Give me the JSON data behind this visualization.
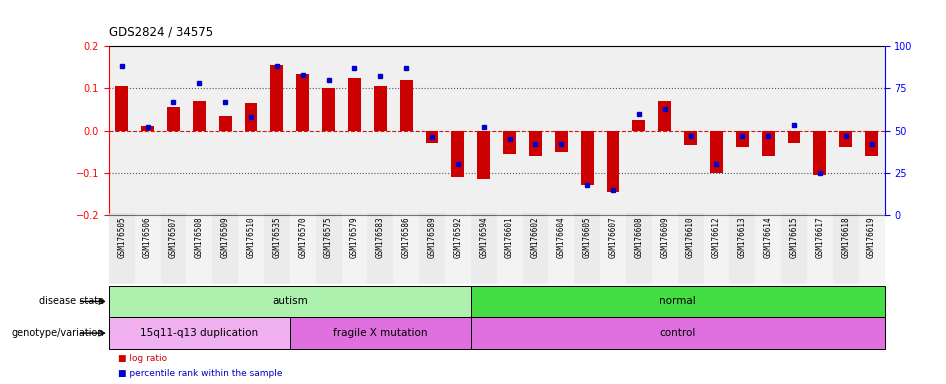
{
  "title": "GDS2824 / 34575",
  "samples": [
    "GSM176505",
    "GSM176506",
    "GSM176507",
    "GSM176508",
    "GSM176509",
    "GSM176510",
    "GSM176535",
    "GSM176570",
    "GSM176575",
    "GSM176579",
    "GSM176583",
    "GSM176586",
    "GSM176589",
    "GSM176592",
    "GSM176594",
    "GSM176601",
    "GSM176602",
    "GSM176604",
    "GSM176605",
    "GSM176607",
    "GSM176608",
    "GSM176609",
    "GSM176610",
    "GSM176612",
    "GSM176613",
    "GSM176614",
    "GSM176615",
    "GSM176617",
    "GSM176618",
    "GSM176619"
  ],
  "log_ratio": [
    0.105,
    0.01,
    0.055,
    0.07,
    0.035,
    0.065,
    0.155,
    0.135,
    0.1,
    0.125,
    0.105,
    0.12,
    -0.03,
    -0.11,
    -0.115,
    -0.055,
    -0.06,
    -0.05,
    -0.13,
    -0.145,
    0.025,
    0.07,
    -0.035,
    -0.1,
    -0.04,
    -0.06,
    -0.03,
    -0.105,
    -0.04,
    -0.06
  ],
  "percentile": [
    88,
    52,
    67,
    78,
    67,
    58,
    88,
    83,
    80,
    87,
    82,
    87,
    46,
    30,
    52,
    45,
    42,
    42,
    18,
    15,
    60,
    63,
    47,
    30,
    47,
    47,
    53,
    25,
    47,
    42
  ],
  "disease_state": [
    {
      "label": "autism",
      "start": 0,
      "end": 14,
      "color": "#aef0ae"
    },
    {
      "label": "normal",
      "start": 14,
      "end": 30,
      "color": "#44dd44"
    }
  ],
  "genotype": [
    {
      "label": "15q11-q13 duplication",
      "start": 0,
      "end": 7,
      "color": "#f0b0f0"
    },
    {
      "label": "fragile X mutation",
      "start": 7,
      "end": 14,
      "color": "#e070e0"
    },
    {
      "label": "control",
      "start": 14,
      "end": 30,
      "color": "#e070e0"
    }
  ],
  "ylim_left": [
    -0.2,
    0.2
  ],
  "ylim_right": [
    0,
    100
  ],
  "yticks_left": [
    -0.2,
    -0.1,
    0.0,
    0.1,
    0.2
  ],
  "yticks_right": [
    0,
    25,
    50,
    75,
    100
  ],
  "bar_color": "#cc0000",
  "dot_color": "#0000cc",
  "bg_color": "#ffffff",
  "plot_bg": "#f0f0f0",
  "label_disease": "disease state",
  "label_genotype": "genotype/variation",
  "legend_red": "log ratio",
  "legend_blue": "percentile rank within the sample"
}
